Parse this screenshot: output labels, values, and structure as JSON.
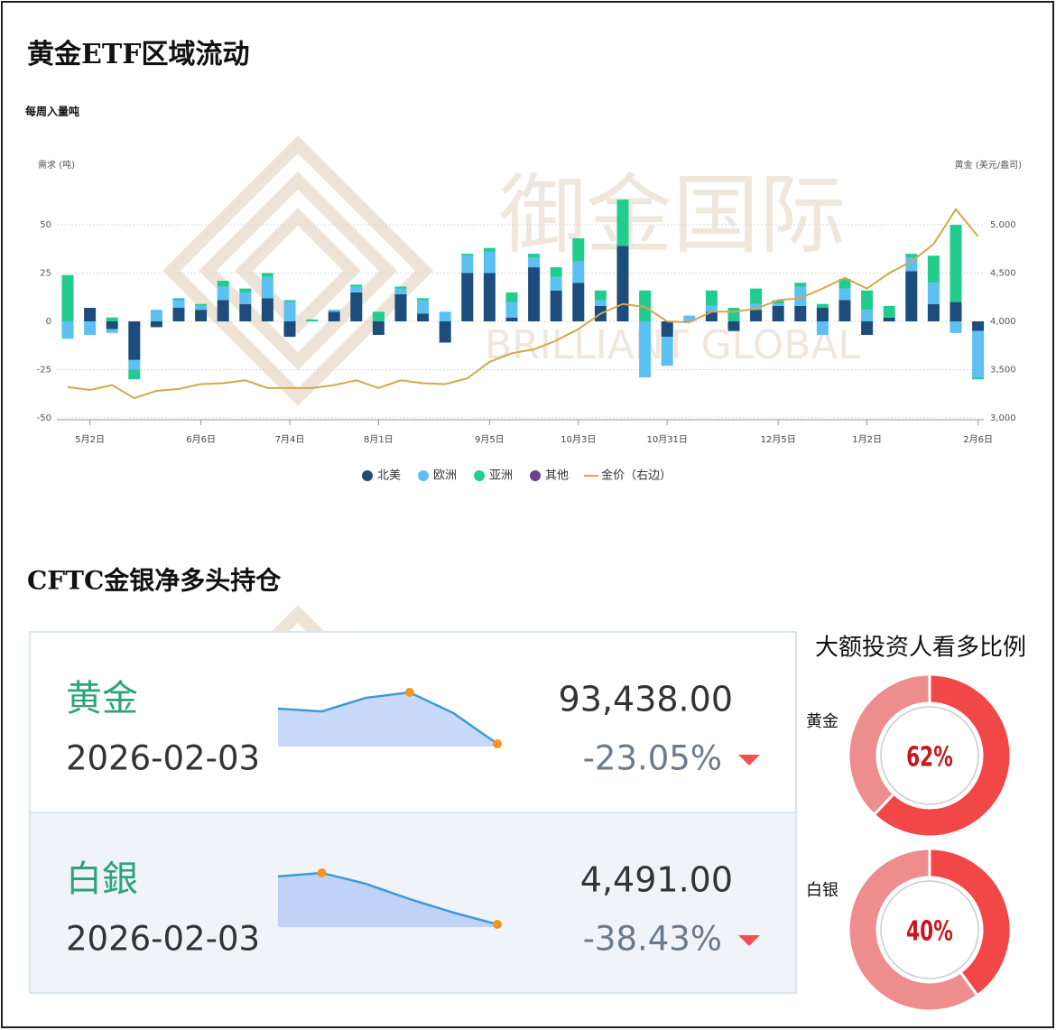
{
  "chart_data": [
    {
      "type": "bar",
      "stacked": true,
      "title": "黄金ETF区域流动",
      "subtitle": "每周入量吨",
      "ylabel": "需求 (吨)",
      "y2label": "黄金 (美元/盎司)",
      "categories": [
        null,
        "5月2日",
        null,
        null,
        null,
        null,
        "6月6日",
        null,
        null,
        null,
        "7月4日",
        null,
        null,
        null,
        "8月1日",
        null,
        null,
        null,
        null,
        "9月5日",
        null,
        null,
        null,
        "10月3日",
        null,
        null,
        null,
        "10月31日",
        null,
        null,
        null,
        null,
        "12月5日",
        null,
        null,
        null,
        "1月2日",
        null,
        null,
        null,
        null,
        "2月6日"
      ],
      "series": [
        {
          "name": "北美",
          "color": "#1d4d7c",
          "values": [
            0,
            7,
            -4,
            -20,
            -3,
            7,
            6,
            11,
            9,
            12,
            -8,
            0,
            5,
            15,
            -7,
            14,
            4,
            -11,
            25,
            25,
            2,
            28,
            16,
            20,
            8,
            39,
            0,
            -8,
            0,
            5,
            -5,
            6,
            8,
            8,
            7,
            11,
            -7,
            2,
            26,
            9,
            10,
            -5
          ]
        },
        {
          "name": "欧洲",
          "color": "#5cc1f2",
          "values": [
            -9,
            -7,
            -2,
            -5,
            6,
            4,
            2,
            7,
            6,
            11,
            10,
            0,
            1,
            3,
            0,
            3,
            7,
            5,
            9,
            11,
            8,
            5,
            7,
            11,
            3,
            0,
            -29,
            -15,
            3,
            3,
            0,
            3,
            1,
            10,
            -7,
            6,
            6,
            0,
            7,
            11,
            -6,
            -24
          ]
        },
        {
          "name": "亚洲",
          "color": "#22cc8e",
          "values": [
            24,
            0,
            2,
            -5,
            0,
            1,
            1,
            3,
            2,
            2,
            1,
            1,
            0,
            1,
            5,
            1,
            1,
            0,
            1,
            2,
            5,
            2,
            5,
            12,
            5,
            24,
            16,
            0,
            0,
            8,
            7,
            8,
            2,
            2,
            2,
            5,
            10,
            6,
            2,
            14,
            40,
            -1
          ]
        },
        {
          "name": "其他",
          "color": "#6b3f93",
          "values": [
            0,
            0,
            0,
            0,
            0,
            0,
            0,
            0,
            0,
            0,
            0,
            0,
            0,
            0,
            0,
            0,
            0,
            0,
            0,
            0,
            0,
            0,
            0,
            0,
            0,
            0,
            0,
            0,
            0,
            0,
            0,
            0,
            0,
            0,
            0,
            0,
            0,
            0,
            0,
            0,
            0,
            0
          ]
        },
        {
          "name": "金价（右边）",
          "color": "#d4a84a",
          "type": "line",
          "axis": "y2",
          "values": [
            3320,
            3290,
            3340,
            3205,
            3280,
            3300,
            3350,
            3360,
            3390,
            3310,
            3310,
            3310,
            3340,
            3390,
            3310,
            3390,
            3360,
            3350,
            3410,
            3580,
            3670,
            3710,
            3800,
            3920,
            4080,
            4180,
            4150,
            4000,
            3990,
            4100,
            4100,
            4130,
            4220,
            4240,
            4340,
            4450,
            4340,
            4500,
            4620,
            4800,
            5160,
            4880
          ]
        }
      ],
      "ylim": [
        -50,
        50
      ],
      "yticks": [
        -50,
        -25,
        0,
        25,
        50
      ],
      "y2lim": [
        3000,
        5000
      ],
      "y2ticks": [
        {
          "value": 3000,
          "label": "3,000"
        },
        {
          "value": 3500,
          "label": "3,500"
        },
        {
          "value": 4000,
          "label": "4,000"
        },
        {
          "value": 4500,
          "label": "4,500"
        },
        {
          "value": 5000,
          "label": "5,000"
        }
      ],
      "grid": true,
      "legend": "bottom"
    },
    {
      "type": "donut",
      "title": "大额投资人看多比例",
      "categories": [
        "黄金",
        "白银"
      ],
      "values": [
        62,
        40
      ],
      "value_labels": [
        "62%",
        "40%"
      ],
      "colors": [
        "#f24747",
        "#ee8d8d"
      ]
    }
  ],
  "cftc": {
    "title": "CFTC金银净多头持仓",
    "rows": [
      {
        "name": "黄金",
        "date": "2026-02-03",
        "value": "93,438.00",
        "change": "-23.05%",
        "sparkline": [
          114350,
          112700,
          120750,
          124000,
          111660,
          93438
        ]
      },
      {
        "name": "白銀",
        "date": "2026-02-03",
        "value": "4,491.00",
        "change": "-38.43%",
        "sparkline": [
          6270,
          6400,
          6000,
          5430,
          4930,
          4491
        ]
      }
    ]
  },
  "watermark": {
    "cn": "御金国际",
    "en": "BRILLIANT GLOBAL"
  }
}
